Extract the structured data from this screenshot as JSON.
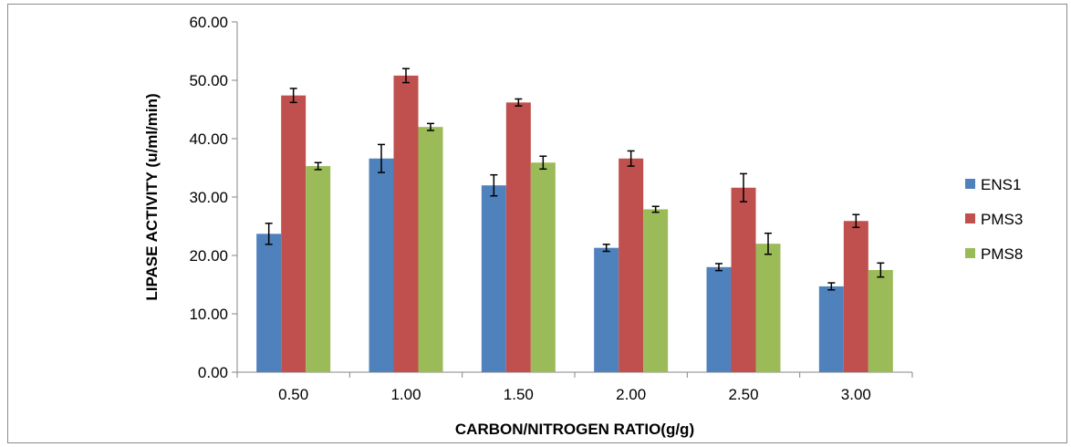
{
  "chart_data": {
    "type": "bar",
    "title": "",
    "xlabel": "CARBON/NITROGEN RATIO(g/g)",
    "ylabel": "LIPASE ACTIVITY (u/ml/min)",
    "ylim": [
      0,
      60
    ],
    "yticks": [
      "0.00",
      "10.00",
      "20.00",
      "30.00",
      "40.00",
      "50.00",
      "60.00"
    ],
    "categories": [
      "0.50",
      "1.00",
      "1.50",
      "2.00",
      "2.50",
      "3.00"
    ],
    "grid": false,
    "legend_position": "right",
    "series": [
      {
        "name": "ENS1",
        "color": "#4f81bd",
        "values": [
          23.7,
          36.6,
          32.0,
          21.3,
          18.0,
          14.7
        ],
        "errors": [
          1.8,
          2.4,
          1.8,
          0.6,
          0.6,
          0.6
        ]
      },
      {
        "name": "PMS3",
        "color": "#c0504d",
        "values": [
          47.4,
          50.8,
          46.2,
          36.6,
          31.6,
          25.9
        ],
        "errors": [
          1.2,
          1.2,
          0.6,
          1.3,
          2.4,
          1.1
        ]
      },
      {
        "name": "PMS8",
        "color": "#9bbb59",
        "values": [
          35.3,
          42.0,
          35.9,
          27.9,
          22.0,
          17.5
        ],
        "errors": [
          0.6,
          0.6,
          1.1,
          0.5,
          1.8,
          1.2
        ]
      }
    ]
  }
}
